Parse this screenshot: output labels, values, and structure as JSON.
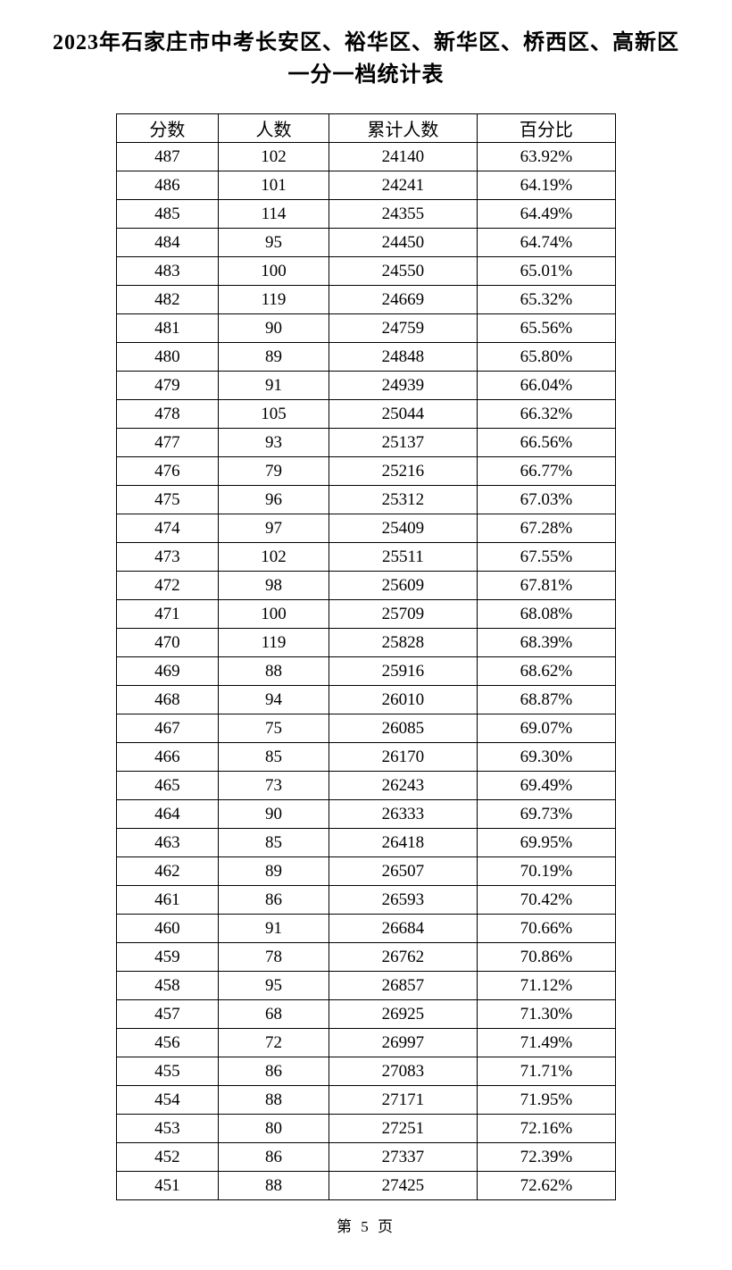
{
  "title_line1": "2023年石家庄市中考长安区、裕华区、新华区、桥西区、高新区",
  "title_line2": "一分一档统计表",
  "table": {
    "columns": [
      "分数",
      "人数",
      "累计人数",
      "百分比"
    ],
    "rows": [
      [
        "487",
        "102",
        "24140",
        "63.92%"
      ],
      [
        "486",
        "101",
        "24241",
        "64.19%"
      ],
      [
        "485",
        "114",
        "24355",
        "64.49%"
      ],
      [
        "484",
        "95",
        "24450",
        "64.74%"
      ],
      [
        "483",
        "100",
        "24550",
        "65.01%"
      ],
      [
        "482",
        "119",
        "24669",
        "65.32%"
      ],
      [
        "481",
        "90",
        "24759",
        "65.56%"
      ],
      [
        "480",
        "89",
        "24848",
        "65.80%"
      ],
      [
        "479",
        "91",
        "24939",
        "66.04%"
      ],
      [
        "478",
        "105",
        "25044",
        "66.32%"
      ],
      [
        "477",
        "93",
        "25137",
        "66.56%"
      ],
      [
        "476",
        "79",
        "25216",
        "66.77%"
      ],
      [
        "475",
        "96",
        "25312",
        "67.03%"
      ],
      [
        "474",
        "97",
        "25409",
        "67.28%"
      ],
      [
        "473",
        "102",
        "25511",
        "67.55%"
      ],
      [
        "472",
        "98",
        "25609",
        "67.81%"
      ],
      [
        "471",
        "100",
        "25709",
        "68.08%"
      ],
      [
        "470",
        "119",
        "25828",
        "68.39%"
      ],
      [
        "469",
        "88",
        "25916",
        "68.62%"
      ],
      [
        "468",
        "94",
        "26010",
        "68.87%"
      ],
      [
        "467",
        "75",
        "26085",
        "69.07%"
      ],
      [
        "466",
        "85",
        "26170",
        "69.30%"
      ],
      [
        "465",
        "73",
        "26243",
        "69.49%"
      ],
      [
        "464",
        "90",
        "26333",
        "69.73%"
      ],
      [
        "463",
        "85",
        "26418",
        "69.95%"
      ],
      [
        "462",
        "89",
        "26507",
        "70.19%"
      ],
      [
        "461",
        "86",
        "26593",
        "70.42%"
      ],
      [
        "460",
        "91",
        "26684",
        "70.66%"
      ],
      [
        "459",
        "78",
        "26762",
        "70.86%"
      ],
      [
        "458",
        "95",
        "26857",
        "71.12%"
      ],
      [
        "457",
        "68",
        "26925",
        "71.30%"
      ],
      [
        "456",
        "72",
        "26997",
        "71.49%"
      ],
      [
        "455",
        "86",
        "27083",
        "71.71%"
      ],
      [
        "454",
        "88",
        "27171",
        "71.95%"
      ],
      [
        "453",
        "80",
        "27251",
        "72.16%"
      ],
      [
        "452",
        "86",
        "27337",
        "72.39%"
      ],
      [
        "451",
        "88",
        "27425",
        "72.62%"
      ]
    ]
  },
  "footer": "第 5 页"
}
